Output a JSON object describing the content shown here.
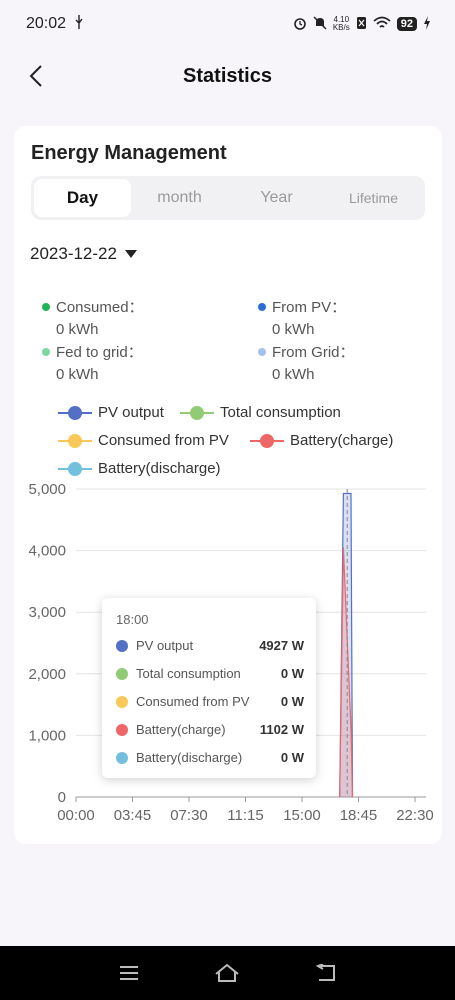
{
  "status_bar": {
    "time": "20:02",
    "net_speed_value": "4.10",
    "net_speed_unit": "KB/s",
    "battery": "92"
  },
  "header": {
    "title": "Statistics"
  },
  "card": {
    "title": "Energy Management"
  },
  "tabs": [
    {
      "label": "Day",
      "active": true
    },
    {
      "label": "month",
      "active": false
    },
    {
      "label": "Year",
      "active": false
    },
    {
      "label": "Lifetime",
      "active": false
    }
  ],
  "date_selector": {
    "value": "2023-12-22"
  },
  "stats": [
    {
      "label": "Consumed：",
      "value": "0 kWh",
      "color": "#1fb35a"
    },
    {
      "label": "From PV：",
      "value": "0 kWh",
      "color": "#2b6fd6"
    },
    {
      "label": "Fed to grid：",
      "value": "0 kWh",
      "color": "#7fd6a4"
    },
    {
      "label": "From Grid：",
      "value": "0 kWh",
      "color": "#a3c0ee"
    }
  ],
  "legend": [
    {
      "label": "PV output",
      "color": "#5470c6"
    },
    {
      "label": "Total consumption",
      "color": "#91cc75"
    },
    {
      "label": "Consumed from PV",
      "color": "#fac858"
    },
    {
      "label": "Battery(charge)",
      "color": "#ee6666"
    },
    {
      "label": "Battery(discharge)",
      "color": "#73c0de"
    }
  ],
  "chart_data": {
    "type": "area",
    "ylim": [
      0,
      5000
    ],
    "y_ticks": [
      "0",
      "1,000",
      "2,000",
      "3,000",
      "4,000",
      "5,000"
    ],
    "x_ticks": [
      "00:00",
      "03:45",
      "07:30",
      "11:15",
      "15:00",
      "18:45",
      "22:30"
    ],
    "series": [
      {
        "name": "PV output",
        "color": "#5470c6",
        "points": [
          [
            17.5,
            0
          ],
          [
            17.75,
            4927
          ],
          [
            18.25,
            4927
          ],
          [
            18.35,
            0
          ]
        ]
      },
      {
        "name": "Battery(charge)",
        "color": "#ee6666",
        "points": [
          [
            17.5,
            0
          ],
          [
            17.75,
            4050
          ],
          [
            18.25,
            1102
          ],
          [
            18.35,
            0
          ]
        ]
      }
    ]
  },
  "tooltip": {
    "time": "18:00",
    "rows": [
      {
        "label": "PV output",
        "value": "4927 W",
        "color": "#5470c6"
      },
      {
        "label": "Total consumption",
        "value": "0 W",
        "color": "#91cc75"
      },
      {
        "label": "Consumed from PV",
        "value": "0 W",
        "color": "#fac858"
      },
      {
        "label": "Battery(charge)",
        "value": "1102 W",
        "color": "#ee6666"
      },
      {
        "label": "Battery(discharge)",
        "value": "0 W",
        "color": "#73c0de"
      }
    ]
  }
}
